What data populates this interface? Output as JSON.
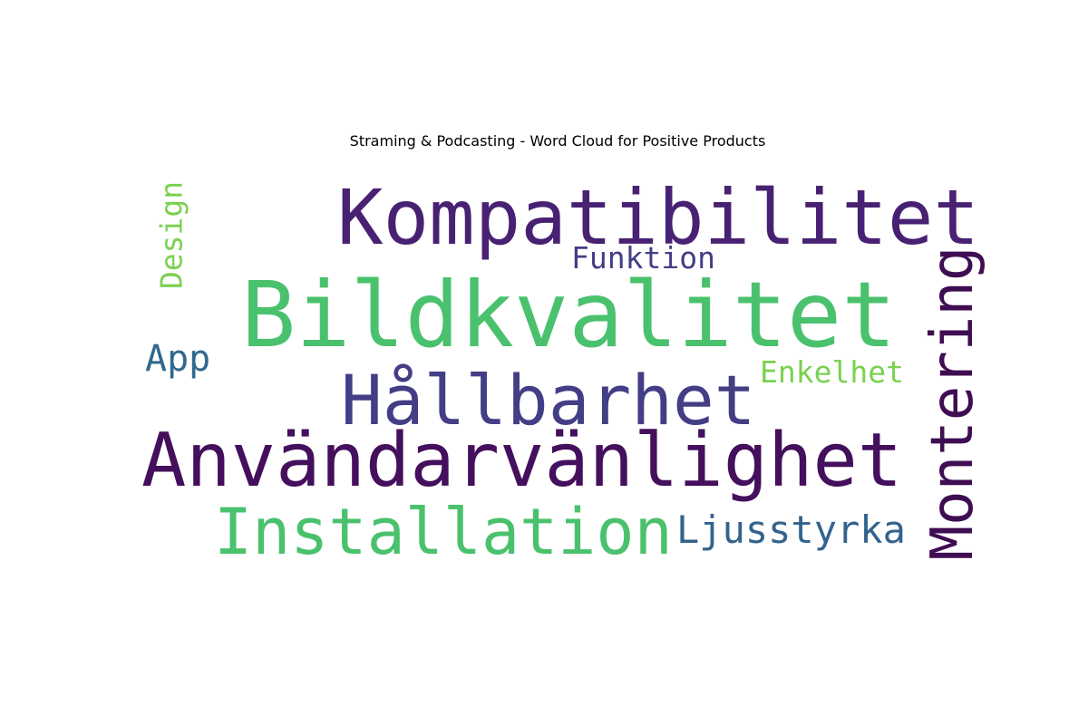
{
  "title": "Straming & Podcasting - Word Cloud for Positive Products",
  "words": [
    {
      "id": "kompatibilitet",
      "text": "Kompatibilitet",
      "color": "#482173"
    },
    {
      "id": "bildkvalitet",
      "text": "Bildkvalitet",
      "color": "#4ac16d"
    },
    {
      "id": "anvandarvanlighet",
      "text": "Användarvänlighet",
      "color": "#440f5c"
    },
    {
      "id": "hallbarhet",
      "text": "Hållbarhet",
      "color": "#433e85"
    },
    {
      "id": "installation",
      "text": "Installation",
      "color": "#4ac16d"
    },
    {
      "id": "montering",
      "text": "Montering",
      "color": "#3f0d52"
    },
    {
      "id": "ljusstyrka",
      "text": "Ljusstyrka",
      "color": "#33638d"
    },
    {
      "id": "funktion",
      "text": "Funktion",
      "color": "#433e85"
    },
    {
      "id": "enkelhet",
      "text": "Enkelhet",
      "color": "#7ad151"
    },
    {
      "id": "app",
      "text": "App",
      "color": "#31688e"
    },
    {
      "id": "design",
      "text": "Design",
      "color": "#7ad151"
    }
  ]
}
